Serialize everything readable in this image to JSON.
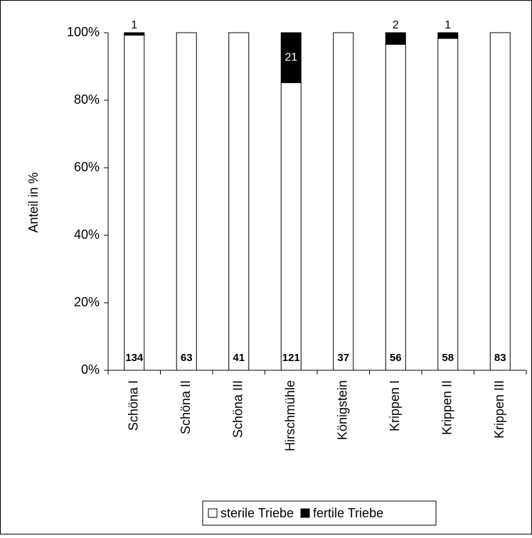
{
  "chart_data": {
    "type": "bar",
    "stacking": "percent",
    "ylabel": "Anteil in %",
    "categories": [
      "Schöna I",
      "Schöna II",
      "Schöna III",
      "Hirschmühle",
      "Königstein",
      "Krippen I",
      "Krippen II",
      "Krippen III"
    ],
    "series": [
      {
        "name": "sterile Triebe",
        "color": "#ffffff",
        "values": [
          134,
          63,
          41,
          121,
          37,
          56,
          58,
          83
        ]
      },
      {
        "name": "fertile Triebe",
        "color": "#000000",
        "values": [
          1,
          0,
          0,
          21,
          0,
          2,
          1,
          0
        ]
      }
    ],
    "ylim": [
      0,
      100
    ],
    "yticks": [
      {
        "value": 0,
        "label": "0%"
      },
      {
        "value": 20,
        "label": "20%"
      },
      {
        "value": 40,
        "label": "40%"
      },
      {
        "value": 60,
        "label": "60%"
      },
      {
        "value": 80,
        "label": "80%"
      },
      {
        "value": 100,
        "label": "100%"
      }
    ],
    "grid": false,
    "legend": "bottom"
  }
}
